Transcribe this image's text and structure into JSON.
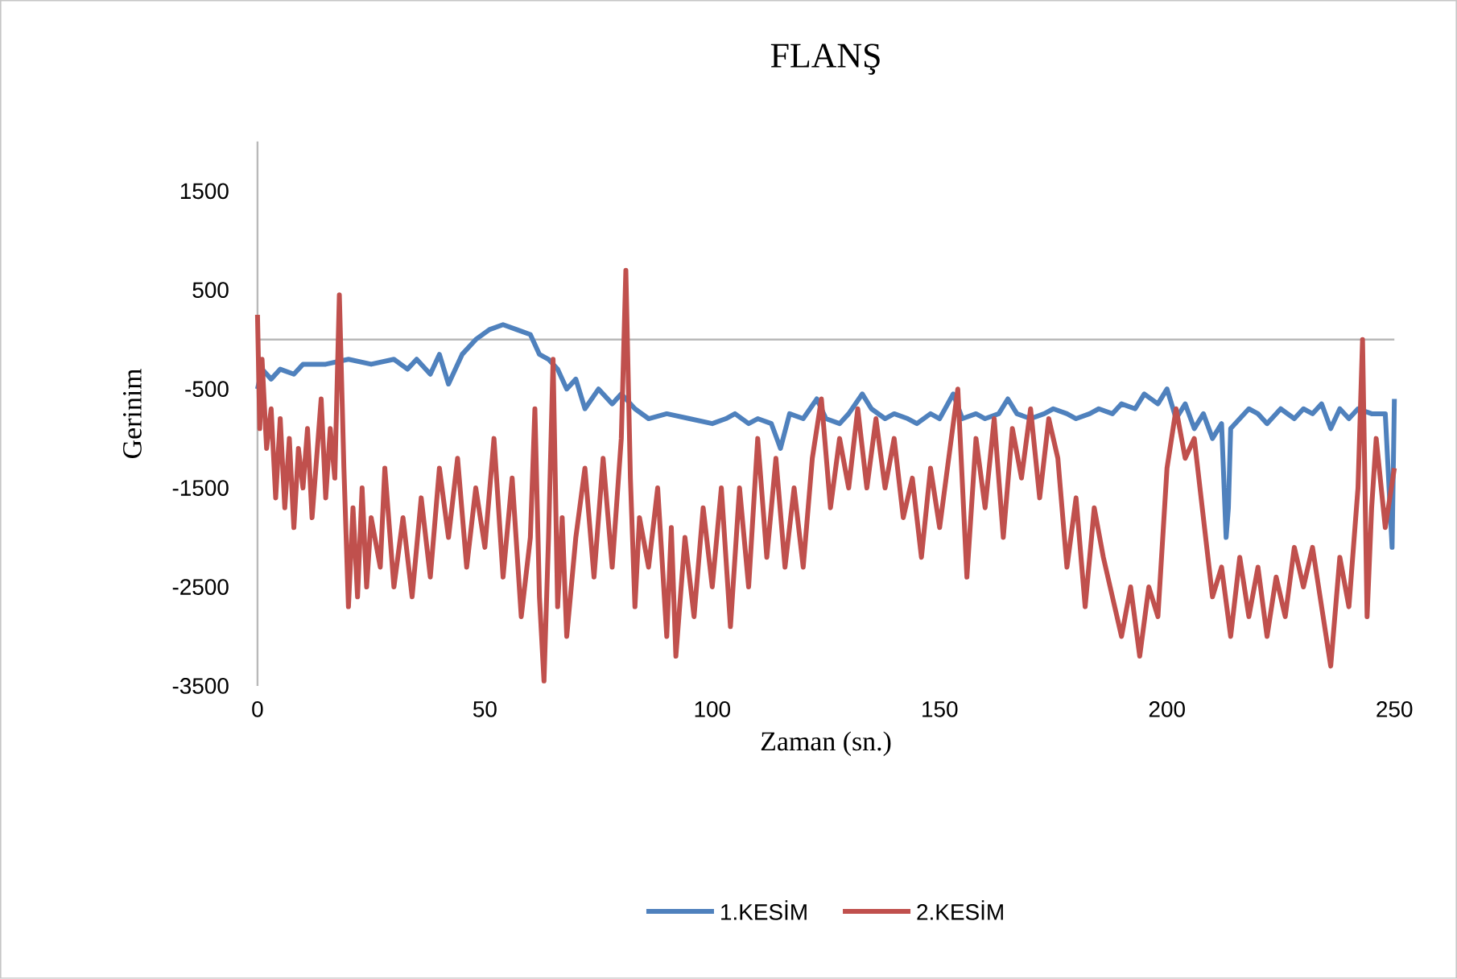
{
  "chart_data": {
    "type": "line",
    "title": "FLANŞ",
    "xlabel": "Zaman (sn.)",
    "ylabel": "Gerinim",
    "xlim": [
      0,
      250
    ],
    "xticks": [
      0,
      50,
      100,
      150,
      200,
      250
    ],
    "ylim": [
      -3500,
      2000
    ],
    "yticks": [
      -3500,
      -2500,
      -1500,
      -500,
      500,
      1500
    ],
    "grid": false,
    "legend": "bottom",
    "marker": "none",
    "line_style": "solid",
    "series": [
      {
        "name": "1.KESİM",
        "color": "#4f81bd",
        "x": [
          0,
          1,
          3,
          5,
          8,
          10,
          15,
          20,
          25,
          30,
          33,
          35,
          38,
          40,
          42,
          45,
          48,
          51,
          54,
          57,
          60,
          62,
          64,
          66,
          68,
          70,
          72,
          75,
          78,
          80,
          83,
          86,
          90,
          95,
          100,
          103,
          105,
          108,
          110,
          113,
          115,
          117,
          120,
          123,
          125,
          128,
          130,
          133,
          135,
          138,
          140,
          143,
          145,
          148,
          150,
          153,
          155,
          158,
          160,
          163,
          165,
          167,
          170,
          173,
          175,
          178,
          180,
          183,
          185,
          188,
          190,
          193,
          195,
          198,
          200,
          202,
          204,
          206,
          208,
          210,
          212,
          213,
          213.5,
          214,
          216,
          218,
          220,
          222,
          225,
          228,
          230,
          232,
          234,
          236,
          238,
          240,
          242,
          245,
          248,
          249.5,
          250
        ],
        "values": [
          -500,
          -300,
          -400,
          -300,
          -350,
          -250,
          -250,
          -200,
          -250,
          -200,
          -300,
          -200,
          -350,
          -150,
          -450,
          -150,
          0,
          100,
          150,
          100,
          50,
          -150,
          -200,
          -300,
          -500,
          -400,
          -700,
          -500,
          -650,
          -550,
          -700,
          -800,
          -750,
          -800,
          -850,
          -800,
          -750,
          -850,
          -800,
          -850,
          -1100,
          -750,
          -800,
          -600,
          -800,
          -850,
          -750,
          -550,
          -700,
          -800,
          -750,
          -800,
          -850,
          -750,
          -800,
          -550,
          -800,
          -750,
          -800,
          -750,
          -600,
          -750,
          -800,
          -750,
          -700,
          -750,
          -800,
          -750,
          -700,
          -750,
          -650,
          -700,
          -550,
          -650,
          -500,
          -800,
          -650,
          -900,
          -750,
          -1000,
          -850,
          -2000,
          -1700,
          -900,
          -800,
          -700,
          -750,
          -850,
          -700,
          -800,
          -700,
          -750,
          -650,
          -900,
          -700,
          -800,
          -700,
          -750,
          -750,
          -2100,
          -600
        ]
      },
      {
        "name": "2.KESİM",
        "color": "#c0504d",
        "x": [
          0,
          0.5,
          1,
          2,
          3,
          4,
          5,
          6,
          7,
          8,
          9,
          10,
          11,
          12,
          13,
          14,
          15,
          16,
          17,
          18,
          19,
          20,
          21,
          22,
          23,
          24,
          25,
          27,
          28,
          30,
          32,
          34,
          36,
          38,
          40,
          42,
          44,
          46,
          48,
          50,
          52,
          54,
          56,
          58,
          60,
          61,
          62,
          63,
          64,
          65,
          66,
          67,
          68,
          70,
          72,
          74,
          76,
          78,
          80,
          81,
          82,
          83,
          84,
          86,
          88,
          90,
          91,
          92,
          94,
          96,
          98,
          100,
          102,
          104,
          106,
          108,
          110,
          112,
          114,
          116,
          118,
          120,
          122,
          124,
          126,
          128,
          130,
          132,
          134,
          136,
          138,
          140,
          142,
          144,
          146,
          148,
          150,
          152,
          154,
          156,
          158,
          160,
          162,
          164,
          166,
          168,
          170,
          172,
          174,
          176,
          178,
          180,
          182,
          184,
          186,
          188,
          190,
          192,
          194,
          196,
          198,
          200,
          202,
          204,
          206,
          208,
          210,
          212,
          214,
          216,
          218,
          220,
          222,
          224,
          226,
          228,
          230,
          232,
          234,
          236,
          238,
          240,
          242,
          243,
          244,
          245,
          246,
          248,
          250
        ],
        "values": [
          250,
          -900,
          -200,
          -1100,
          -700,
          -1600,
          -800,
          -1700,
          -1000,
          -1900,
          -1100,
          -1500,
          -900,
          -1800,
          -1200,
          -600,
          -1600,
          -900,
          -1400,
          450,
          -1300,
          -2700,
          -1700,
          -2600,
          -1500,
          -2500,
          -1800,
          -2300,
          -1300,
          -2500,
          -1800,
          -2600,
          -1600,
          -2400,
          -1300,
          -2000,
          -1200,
          -2300,
          -1500,
          -2100,
          -1000,
          -2400,
          -1400,
          -2800,
          -2000,
          -700,
          -2600,
          -3450,
          -2000,
          -200,
          -2700,
          -1800,
          -3000,
          -2000,
          -1300,
          -2400,
          -1200,
          -2300,
          -1000,
          700,
          -1400,
          -2700,
          -1800,
          -2300,
          -1500,
          -3000,
          -1900,
          -3200,
          -2000,
          -2800,
          -1700,
          -2500,
          -1500,
          -2900,
          -1500,
          -2500,
          -1000,
          -2200,
          -1200,
          -2300,
          -1500,
          -2300,
          -1200,
          -600,
          -1700,
          -1000,
          -1500,
          -700,
          -1500,
          -800,
          -1500,
          -1000,
          -1800,
          -1400,
          -2200,
          -1300,
          -1900,
          -1200,
          -500,
          -2400,
          -1000,
          -1700,
          -800,
          -2000,
          -900,
          -1400,
          -700,
          -1600,
          -800,
          -1200,
          -2300,
          -1600,
          -2700,
          -1700,
          -2200,
          -2600,
          -3000,
          -2500,
          -3200,
          -2500,
          -2800,
          -1300,
          -700,
          -1200,
          -1000,
          -1800,
          -2600,
          -2300,
          -3000,
          -2200,
          -2800,
          -2300,
          -3000,
          -2400,
          -2800,
          -2100,
          -2500,
          -2100,
          -2700,
          -3300,
          -2200,
          -2700,
          -1500,
          0,
          -2800,
          -1700,
          -1000,
          -1900,
          -1300
        ]
      }
    ]
  }
}
